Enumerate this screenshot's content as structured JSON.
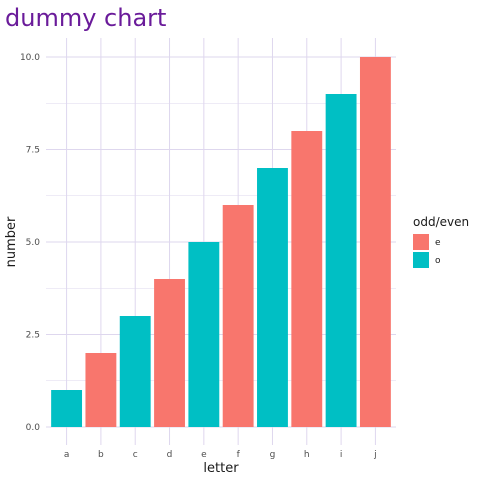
{
  "chart_data": {
    "type": "bar",
    "title": "dummy chart",
    "xlabel": "letter",
    "ylabel": "number",
    "categories": [
      "a",
      "b",
      "c",
      "d",
      "e",
      "f",
      "g",
      "h",
      "i",
      "j"
    ],
    "values": [
      1,
      2,
      3,
      4,
      5,
      6,
      7,
      8,
      9,
      10
    ],
    "groups": [
      "o",
      "e",
      "o",
      "e",
      "o",
      "e",
      "o",
      "e",
      "o",
      "e"
    ],
    "ylim": [
      0,
      10
    ],
    "yticks": [
      0,
      2.5,
      5,
      7.5,
      10
    ],
    "ytick_labels": [
      "0.0",
      "2.5",
      "5.0",
      "7.5",
      "10.0"
    ],
    "grid": true,
    "legend": {
      "title": "odd/even",
      "placement": "right",
      "entries": [
        {
          "label": "e",
          "color": "#F8766D"
        },
        {
          "label": "o",
          "color": "#00BFC4"
        }
      ]
    },
    "colors": {
      "e": "#F8766D",
      "o": "#00BFC4",
      "grid": "#ded7ee",
      "title": "#6a1b9a"
    }
  }
}
